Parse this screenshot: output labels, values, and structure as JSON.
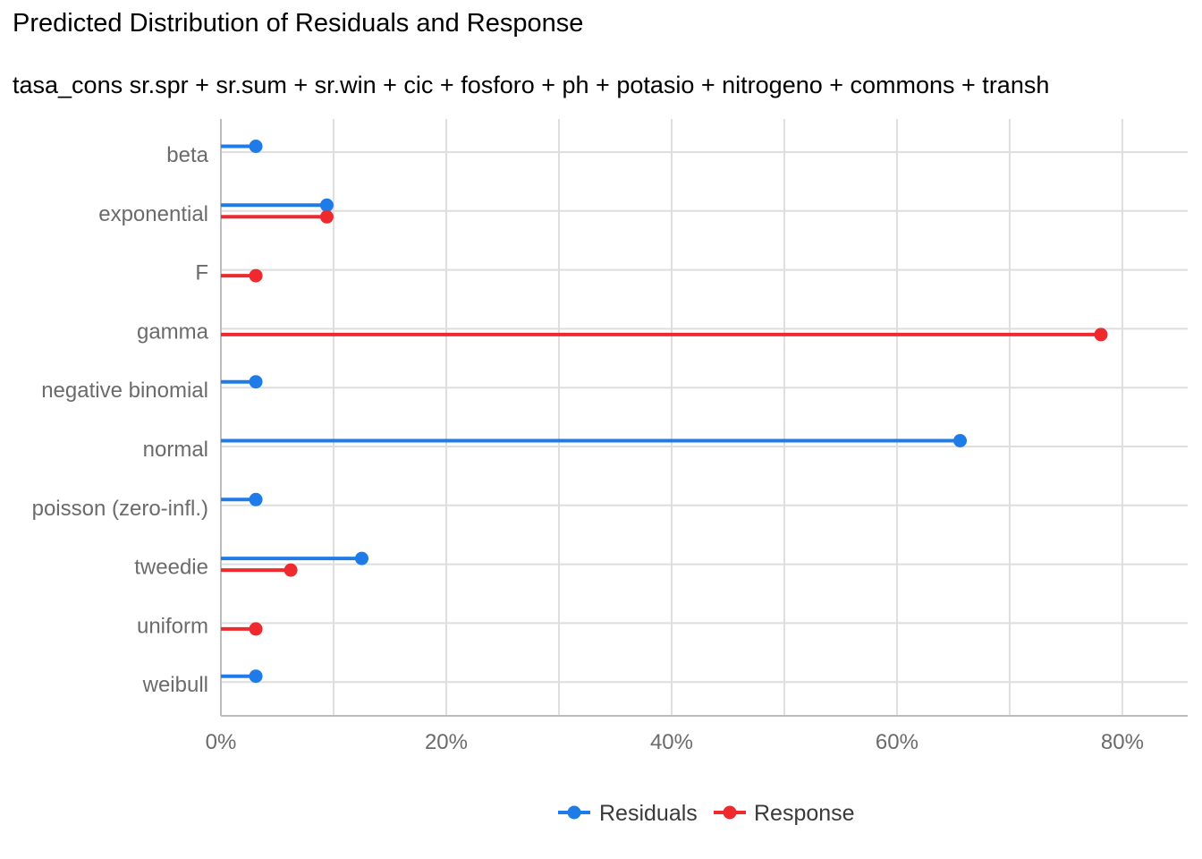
{
  "chart_data": {
    "type": "lollipop",
    "title": "Predicted Distribution of Residuals and Response",
    "subtitle": "tasa_cons sr.spr + sr.sum + sr.win + cic + fosforo + ph + potasio + nitrogeno + commons + transh",
    "xlabel": "",
    "ylabel": "",
    "xlim": [
      0,
      85.8
    ],
    "x_ticks": [
      0,
      20,
      40,
      60,
      80
    ],
    "x_tick_labels": [
      "0%",
      "20%",
      "40%",
      "60%",
      "80%"
    ],
    "categories": [
      "beta",
      "exponential",
      "F",
      "gamma",
      "negative binomial",
      "normal",
      "poisson (zero-infl.)",
      "tweedie",
      "uniform",
      "weibull"
    ],
    "series": [
      {
        "name": "Residuals",
        "color": "#1f7be8",
        "values": [
          3.1,
          9.4,
          null,
          null,
          3.1,
          65.6,
          3.1,
          12.5,
          null,
          3.1
        ]
      },
      {
        "name": "Response",
        "color": "#ee2a2f",
        "values": [
          null,
          9.4,
          3.1,
          78.1,
          null,
          null,
          null,
          6.2,
          3.1,
          null
        ]
      }
    ],
    "legend_position": "bottom",
    "grid": true
  }
}
